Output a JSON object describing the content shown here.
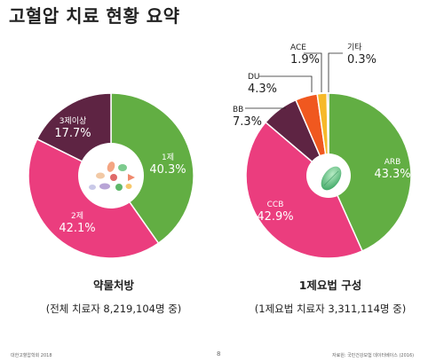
{
  "title": "고혈압 치료 현황 요약",
  "colors": {
    "green": "#62AE43",
    "pink": "#EB3D7E",
    "maroon": "#5E2443",
    "orange": "#F0581F",
    "yellow": "#F6B92A",
    "navy": "#1F2D58"
  },
  "chart_data": [
    {
      "type": "pie",
      "title": "약물처방",
      "subtitle": "(전체 치료자 8,219,104명 중)",
      "slices": [
        {
          "name": "1제",
          "value": 40.3,
          "label": "40.3%",
          "color": "#62AE43"
        },
        {
          "name": "2제",
          "value": 42.1,
          "label": "42.1%",
          "color": "#EB3D7E"
        },
        {
          "name": "3제이상",
          "value": 17.7,
          "label": "17.7%",
          "color": "#5E2443"
        }
      ]
    },
    {
      "type": "pie",
      "title": "1제요법 구성",
      "subtitle": "(1제요법 치료자 3,311,114명 중)",
      "slices": [
        {
          "name": "ARB",
          "value": 43.3,
          "label": "43.3%",
          "color": "#62AE43"
        },
        {
          "name": "CCB",
          "value": 42.9,
          "label": "42.9%",
          "color": "#EB3D7E"
        },
        {
          "name": "BB",
          "value": 7.3,
          "label": "7.3%",
          "color": "#5E2443"
        },
        {
          "name": "DU",
          "value": 4.3,
          "label": "4.3%",
          "color": "#F0581F"
        },
        {
          "name": "ACE",
          "value": 1.9,
          "label": "1.9%",
          "color": "#F6B92A"
        },
        {
          "name": "기타",
          "value": 0.3,
          "label": "0.3%",
          "color": "#1F2D58"
        }
      ]
    }
  ],
  "footer": {
    "left": "대한고혈압학회 2018",
    "page": "8",
    "right": "자료원: 국민건강보험 데이터베이스 (2016)"
  }
}
